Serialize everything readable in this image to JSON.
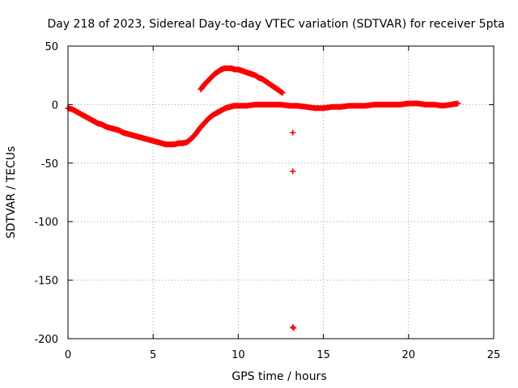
{
  "chart_data": {
    "type": "scatter",
    "title": "Day 218 of 2023, Sidereal Day-to-day VTEC variation (SDTVAR) for receiver 5pta",
    "xlabel": "GPS time / hours",
    "ylabel": "SDTVAR / TECUs",
    "xlim": [
      0,
      25
    ],
    "ylim": [
      -200,
      50
    ],
    "xticks": [
      0,
      5,
      10,
      15,
      20,
      25
    ],
    "yticks": [
      50,
      0,
      -50,
      -100,
      -150,
      -200
    ],
    "grid": true,
    "legend": "none",
    "marker": "plus",
    "color": "#ff0000",
    "series": [
      {
        "name": "main track",
        "x": [
          0.0,
          0.25,
          0.5,
          0.75,
          1.0,
          1.25,
          1.5,
          1.75,
          2.0,
          2.25,
          2.5,
          2.75,
          3.0,
          3.25,
          3.5,
          3.75,
          4.0,
          4.25,
          4.5,
          4.75,
          5.0,
          5.25,
          5.5,
          5.75,
          6.0,
          6.25,
          6.5,
          6.75,
          7.0,
          7.25,
          7.5,
          7.75,
          8.0,
          8.25,
          8.5,
          8.75,
          9.0,
          9.25,
          9.5,
          9.75,
          10.0,
          10.5,
          11.0,
          11.5,
          12.0,
          12.5,
          13.0,
          13.5,
          14.0,
          14.5,
          15.0,
          15.5,
          16.0,
          16.5,
          17.0,
          17.5,
          18.0,
          18.5,
          19.0,
          19.5,
          20.0,
          20.5,
          21.0,
          21.5,
          22.0,
          22.5,
          22.9
        ],
        "y": [
          -3,
          -4,
          -6,
          -8,
          -10,
          -12,
          -14,
          -16,
          -17,
          -19,
          -20,
          -21,
          -22,
          -24,
          -25,
          -26,
          -27,
          -28,
          -29,
          -30,
          -31,
          -32,
          -33,
          -34,
          -34,
          -34,
          -33,
          -33,
          -32,
          -29,
          -25,
          -20,
          -16,
          -12,
          -9,
          -7,
          -5,
          -3,
          -2,
          -1,
          -1,
          -1,
          0,
          0,
          0,
          0,
          -1,
          -1,
          -2,
          -3,
          -3,
          -2,
          -2,
          -1,
          -1,
          -1,
          0,
          0,
          0,
          0,
          1,
          1,
          0,
          0,
          -1,
          0,
          1
        ]
      },
      {
        "name": "arc",
        "x": [
          7.8,
          8.0,
          8.2,
          8.4,
          8.6,
          8.8,
          9.0,
          9.2,
          9.4,
          9.6,
          9.8,
          10.0,
          10.2,
          10.4,
          10.6,
          10.8,
          11.0,
          11.2,
          11.4,
          11.6,
          11.8,
          12.0,
          12.2,
          12.4,
          12.6
        ],
        "y": [
          13,
          17,
          20,
          23,
          26,
          28,
          30,
          31,
          31,
          31,
          30,
          30,
          29,
          28,
          27,
          26,
          25,
          23,
          22,
          20,
          18,
          16,
          14,
          12,
          10
        ]
      },
      {
        "name": "outliers",
        "x": [
          13.2,
          13.2,
          13.2,
          13.25
        ],
        "y": [
          -24,
          -57,
          -190,
          -191
        ]
      }
    ]
  }
}
